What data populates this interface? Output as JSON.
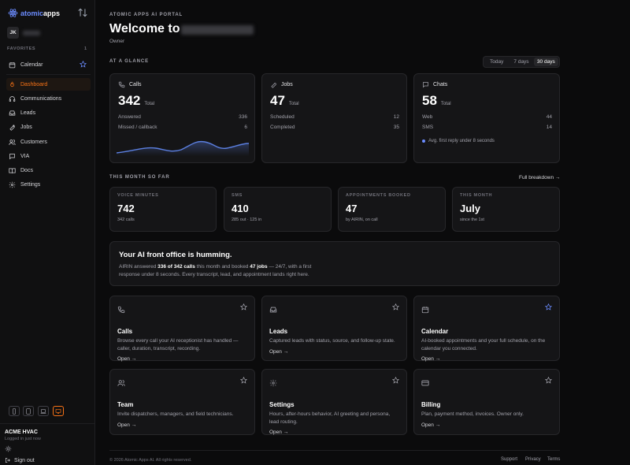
{
  "brand": {
    "name_part1": "atomic",
    "name_part2": "apps"
  },
  "user": {
    "initials": "JK"
  },
  "sidebar": {
    "favorites_label": "FAVORITES",
    "favorites_count": "1",
    "favorite_item": "Calendar",
    "nav": [
      {
        "label": "Dashboard",
        "icon": "flame-icon"
      },
      {
        "label": "Communications",
        "icon": "headset-icon"
      },
      {
        "label": "Leads",
        "icon": "inbox-icon"
      },
      {
        "label": "Jobs",
        "icon": "wrench-icon"
      },
      {
        "label": "Customers",
        "icon": "users-icon"
      },
      {
        "label": "VIA",
        "icon": "chat-icon"
      },
      {
        "label": "Docs",
        "icon": "book-icon"
      },
      {
        "label": "Settings",
        "icon": "gear-icon"
      }
    ],
    "devices": [
      "phone-icon",
      "tablet-icon",
      "laptop-icon",
      "desktop-icon"
    ],
    "account_name": "ACME HVAC",
    "account_status": "Logged in just now",
    "signout": "Sign out"
  },
  "header": {
    "kicker": "ATOMIC APPS AI PORTAL",
    "title": "Welcome to",
    "role": "Owner"
  },
  "glance": {
    "label": "AT A GLANCE",
    "ranges": [
      "Today",
      "7 days",
      "30 days"
    ],
    "selected_range": "30 days",
    "calls": {
      "title": "Calls",
      "value": "342",
      "unit": "Total",
      "rows": [
        {
          "label": "Answered",
          "value": "336"
        },
        {
          "label": "Missed / callback",
          "value": "6"
        }
      ]
    },
    "jobs": {
      "title": "Jobs",
      "value": "47",
      "unit": "Total",
      "rows": [
        {
          "label": "Scheduled",
          "value": "12"
        },
        {
          "label": "Completed",
          "value": "35"
        }
      ]
    },
    "chats": {
      "title": "Chats",
      "value": "58",
      "unit": "Total",
      "rows": [
        {
          "label": "Web",
          "value": "44"
        },
        {
          "label": "SMS",
          "value": "14"
        }
      ],
      "note": "Avg. first reply under 8 seconds"
    }
  },
  "month": {
    "label": "THIS MONTH SO FAR",
    "link": "Full breakdown →",
    "cards": [
      {
        "label": "VOICE MINUTES",
        "value": "742",
        "sub": "342 calls"
      },
      {
        "label": "SMS",
        "value": "410",
        "sub": "285 out · 125 in"
      },
      {
        "label": "APPOINTMENTS BOOKED",
        "value": "47",
        "sub": "by AIRIN, on call"
      },
      {
        "label": "THIS MONTH",
        "value": "July",
        "sub": "since the 1st"
      }
    ]
  },
  "banner": {
    "title": "Your AI front office is humming.",
    "t1": "AIRIN answered ",
    "b1": "336 of 342 calls",
    "t2": " this month and booked ",
    "b2": "47 jobs",
    "t3": " — 24/7, with a first",
    "line2": "response under 8 seconds. Every transcript, lead, and appointment lands right here."
  },
  "features": [
    {
      "title": "Calls",
      "icon": "phone-icon",
      "starred": false,
      "desc1": "Browse every call your AI receptionist has handled —",
      "desc2": "caller, duration, transcript, recording.",
      "open": "Open →"
    },
    {
      "title": "Leads",
      "icon": "inbox-icon",
      "starred": false,
      "desc1": "Captured leads with status, source, and follow-up state.",
      "desc2": "",
      "open": "Open →"
    },
    {
      "title": "Calendar",
      "icon": "calendar-icon",
      "starred": true,
      "desc1": "AI-booked appointments and your full schedule, on the",
      "desc2": "calendar you connected.",
      "open": "Open →"
    },
    {
      "title": "Team",
      "icon": "users-icon",
      "starred": false,
      "desc1": "Invite dispatchers, managers, and field technicians.",
      "desc2": "",
      "open": "Open →"
    },
    {
      "title": "Settings",
      "icon": "gear-icon",
      "starred": false,
      "desc1": "Hours, after-hours behavior, AI greeting and persona,",
      "desc2": "lead routing.",
      "open": "Open →"
    },
    {
      "title": "Billing",
      "icon": "card-icon",
      "starred": false,
      "desc1": "Plan, payment method, invoices. Owner only.",
      "desc2": "",
      "open": "Open →"
    }
  ],
  "footer": {
    "copyright": "© 2026 Atomic Apps AI. All rights reserved.",
    "links": [
      "Support",
      "Privacy",
      "Terms"
    ]
  },
  "colors": {
    "accent": "#f97316",
    "star": "#6b8cff",
    "chart_line": "#5b7fe0"
  }
}
